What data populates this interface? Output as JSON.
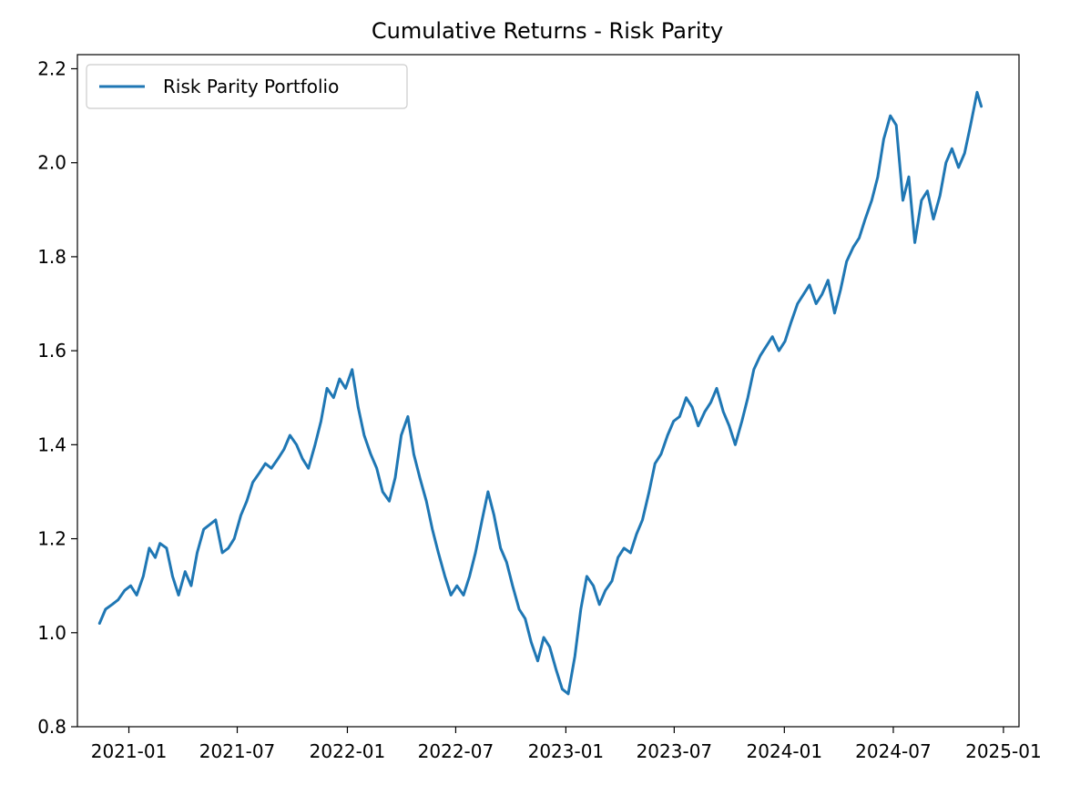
{
  "chart_data": {
    "type": "line",
    "title": "Cumulative Returns - Risk Parity",
    "xlabel": "",
    "ylabel": "",
    "xlim": [
      "2020-10-07",
      "2025-01-27"
    ],
    "ylim": [
      0.8,
      2.23
    ],
    "x_ticks": [
      "2021-01-01",
      "2021-07-01",
      "2022-01-01",
      "2022-07-01",
      "2023-01-01",
      "2023-07-01",
      "2024-01-01",
      "2024-07-01",
      "2025-01-01"
    ],
    "x_tick_labels": [
      "2021-01",
      "2021-07",
      "2022-01",
      "2022-07",
      "2023-01",
      "2023-07",
      "2024-01",
      "2024-07",
      "2025-01"
    ],
    "y_ticks": [
      0.8,
      1.0,
      1.2,
      1.4,
      1.6,
      1.8,
      2.0,
      2.2
    ],
    "y_tick_labels": [
      "0.8",
      "1.0",
      "1.2",
      "1.4",
      "1.6",
      "1.8",
      "2.0",
      "2.2"
    ],
    "grid": false,
    "legend": {
      "position": "top-left",
      "entries": [
        "Risk Parity Portfolio"
      ]
    },
    "series": [
      {
        "name": "Risk Parity Portfolio",
        "color": "#1f77b4",
        "points": [
          [
            "2020-11-13",
            1.02
          ],
          [
            "2020-11-23",
            1.05
          ],
          [
            "2020-12-04",
            1.06
          ],
          [
            "2020-12-14",
            1.07
          ],
          [
            "2020-12-25",
            1.09
          ],
          [
            "2021-01-04",
            1.1
          ],
          [
            "2021-01-14",
            1.08
          ],
          [
            "2021-01-25",
            1.12
          ],
          [
            "2021-02-04",
            1.18
          ],
          [
            "2021-02-14",
            1.16
          ],
          [
            "2021-02-22",
            1.19
          ],
          [
            "2021-03-05",
            1.18
          ],
          [
            "2021-03-15",
            1.12
          ],
          [
            "2021-03-25",
            1.08
          ],
          [
            "2021-04-05",
            1.13
          ],
          [
            "2021-04-15",
            1.1
          ],
          [
            "2021-04-25",
            1.17
          ],
          [
            "2021-05-06",
            1.22
          ],
          [
            "2021-05-16",
            1.23
          ],
          [
            "2021-05-26",
            1.24
          ],
          [
            "2021-06-06",
            1.17
          ],
          [
            "2021-06-16",
            1.18
          ],
          [
            "2021-06-26",
            1.2
          ],
          [
            "2021-07-07",
            1.25
          ],
          [
            "2021-07-17",
            1.28
          ],
          [
            "2021-07-27",
            1.32
          ],
          [
            "2021-08-07",
            1.34
          ],
          [
            "2021-08-17",
            1.36
          ],
          [
            "2021-08-27",
            1.35
          ],
          [
            "2021-09-07",
            1.37
          ],
          [
            "2021-09-17",
            1.39
          ],
          [
            "2021-09-27",
            1.42
          ],
          [
            "2021-10-08",
            1.4
          ],
          [
            "2021-10-18",
            1.37
          ],
          [
            "2021-10-28",
            1.35
          ],
          [
            "2021-11-08",
            1.4
          ],
          [
            "2021-11-18",
            1.45
          ],
          [
            "2021-11-28",
            1.52
          ],
          [
            "2021-12-09",
            1.5
          ],
          [
            "2021-12-19",
            1.54
          ],
          [
            "2021-12-29",
            1.52
          ],
          [
            "2022-01-09",
            1.56
          ],
          [
            "2022-01-19",
            1.48
          ],
          [
            "2022-01-29",
            1.42
          ],
          [
            "2022-02-09",
            1.38
          ],
          [
            "2022-02-19",
            1.35
          ],
          [
            "2022-03-01",
            1.3
          ],
          [
            "2022-03-12",
            1.28
          ],
          [
            "2022-03-22",
            1.33
          ],
          [
            "2022-04-01",
            1.42
          ],
          [
            "2022-04-12",
            1.46
          ],
          [
            "2022-04-22",
            1.38
          ],
          [
            "2022-05-02",
            1.33
          ],
          [
            "2022-05-13",
            1.28
          ],
          [
            "2022-05-23",
            1.22
          ],
          [
            "2022-06-02",
            1.17
          ],
          [
            "2022-06-13",
            1.12
          ],
          [
            "2022-06-23",
            1.08
          ],
          [
            "2022-07-03",
            1.1
          ],
          [
            "2022-07-14",
            1.08
          ],
          [
            "2022-07-24",
            1.12
          ],
          [
            "2022-08-03",
            1.17
          ],
          [
            "2022-08-14",
            1.24
          ],
          [
            "2022-08-24",
            1.3
          ],
          [
            "2022-09-03",
            1.25
          ],
          [
            "2022-09-14",
            1.18
          ],
          [
            "2022-09-24",
            1.15
          ],
          [
            "2022-10-04",
            1.1
          ],
          [
            "2022-10-15",
            1.05
          ],
          [
            "2022-10-25",
            1.03
          ],
          [
            "2022-11-04",
            0.98
          ],
          [
            "2022-11-15",
            0.94
          ],
          [
            "2022-11-25",
            0.99
          ],
          [
            "2022-12-05",
            0.97
          ],
          [
            "2022-12-16",
            0.92
          ],
          [
            "2022-12-26",
            0.88
          ],
          [
            "2023-01-05",
            0.87
          ],
          [
            "2023-01-16",
            0.95
          ],
          [
            "2023-01-26",
            1.05
          ],
          [
            "2023-02-05",
            1.12
          ],
          [
            "2023-02-16",
            1.1
          ],
          [
            "2023-02-26",
            1.06
          ],
          [
            "2023-03-08",
            1.09
          ],
          [
            "2023-03-19",
            1.11
          ],
          [
            "2023-03-29",
            1.16
          ],
          [
            "2023-04-08",
            1.18
          ],
          [
            "2023-04-19",
            1.17
          ],
          [
            "2023-04-29",
            1.21
          ],
          [
            "2023-05-09",
            1.24
          ],
          [
            "2023-05-20",
            1.3
          ],
          [
            "2023-05-30",
            1.36
          ],
          [
            "2023-06-09",
            1.38
          ],
          [
            "2023-06-20",
            1.42
          ],
          [
            "2023-06-30",
            1.45
          ],
          [
            "2023-07-10",
            1.46
          ],
          [
            "2023-07-21",
            1.5
          ],
          [
            "2023-07-31",
            1.48
          ],
          [
            "2023-08-10",
            1.44
          ],
          [
            "2023-08-21",
            1.47
          ],
          [
            "2023-08-31",
            1.49
          ],
          [
            "2023-09-10",
            1.52
          ],
          [
            "2023-09-21",
            1.47
          ],
          [
            "2023-10-01",
            1.44
          ],
          [
            "2023-10-11",
            1.4
          ],
          [
            "2023-10-22",
            1.45
          ],
          [
            "2023-11-01",
            1.5
          ],
          [
            "2023-11-11",
            1.56
          ],
          [
            "2023-11-22",
            1.59
          ],
          [
            "2023-12-02",
            1.61
          ],
          [
            "2023-12-12",
            1.63
          ],
          [
            "2023-12-23",
            1.6
          ],
          [
            "2024-01-02",
            1.62
          ],
          [
            "2024-01-12",
            1.66
          ],
          [
            "2024-01-23",
            1.7
          ],
          [
            "2024-02-02",
            1.72
          ],
          [
            "2024-02-12",
            1.74
          ],
          [
            "2024-02-23",
            1.7
          ],
          [
            "2024-03-04",
            1.72
          ],
          [
            "2024-03-14",
            1.75
          ],
          [
            "2024-03-25",
            1.68
          ],
          [
            "2024-04-04",
            1.73
          ],
          [
            "2024-04-14",
            1.79
          ],
          [
            "2024-04-25",
            1.82
          ],
          [
            "2024-05-05",
            1.84
          ],
          [
            "2024-05-15",
            1.88
          ],
          [
            "2024-05-26",
            1.92
          ],
          [
            "2024-06-05",
            1.97
          ],
          [
            "2024-06-15",
            2.05
          ],
          [
            "2024-06-26",
            2.1
          ],
          [
            "2024-07-06",
            2.08
          ],
          [
            "2024-07-17",
            1.92
          ],
          [
            "2024-07-27",
            1.97
          ],
          [
            "2024-08-06",
            1.83
          ],
          [
            "2024-08-17",
            1.92
          ],
          [
            "2024-08-27",
            1.94
          ],
          [
            "2024-09-06",
            1.88
          ],
          [
            "2024-09-17",
            1.93
          ],
          [
            "2024-09-27",
            2.0
          ],
          [
            "2024-10-07",
            2.03
          ],
          [
            "2024-10-18",
            1.99
          ],
          [
            "2024-10-28",
            2.02
          ],
          [
            "2024-11-07",
            2.08
          ],
          [
            "2024-11-18",
            2.15
          ],
          [
            "2024-11-25",
            2.12
          ]
        ]
      }
    ]
  }
}
